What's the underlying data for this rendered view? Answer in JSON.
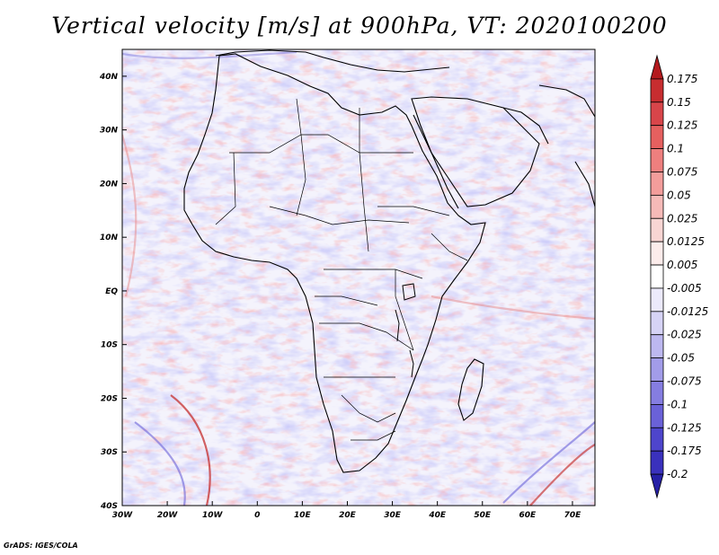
{
  "title": "Vertical velocity [m/s] at 900hPa, VT: 2020100200",
  "credit": "GrADS: IGES/COLA",
  "map": {
    "region": "Africa",
    "lon_range": [
      -30,
      75
    ],
    "lat_range": [
      -40,
      45
    ],
    "lon_ticks": [
      "30W",
      "20W",
      "10W",
      "0",
      "10E",
      "20E",
      "30E",
      "40E",
      "50E",
      "60E",
      "70E"
    ],
    "lat_ticks": [
      "40N",
      "30N",
      "20N",
      "10N",
      "EQ",
      "10S",
      "20S",
      "30S",
      "40S"
    ],
    "lon_tick_values": [
      -30,
      -20,
      -10,
      0,
      10,
      20,
      30,
      40,
      50,
      60,
      70
    ],
    "lat_tick_values": [
      40,
      30,
      20,
      10,
      0,
      -10,
      -20,
      -30,
      -40
    ]
  },
  "colorbar": {
    "labels": [
      "0.175",
      "0.15",
      "0.125",
      "0.1",
      "0.075",
      "0.05",
      "0.025",
      "0.0125",
      "0.005",
      "-0.005",
      "-0.0125",
      "-0.025",
      "-0.05",
      "-0.075",
      "-0.1",
      "-0.125",
      "-0.175",
      "-0.2"
    ],
    "colors": [
      "#b31a1e",
      "#c72d30",
      "#d8454a",
      "#e5605f",
      "#ee7f7e",
      "#f39d9b",
      "#f6bab8",
      "#f9d5d3",
      "#fceceb",
      "#ffffff",
      "#eceafb",
      "#d6d3f6",
      "#bdb8f0",
      "#a29ce9",
      "#857de1",
      "#6a61d8",
      "#4e45cc",
      "#3a31bd",
      "#2620a6"
    ]
  }
}
